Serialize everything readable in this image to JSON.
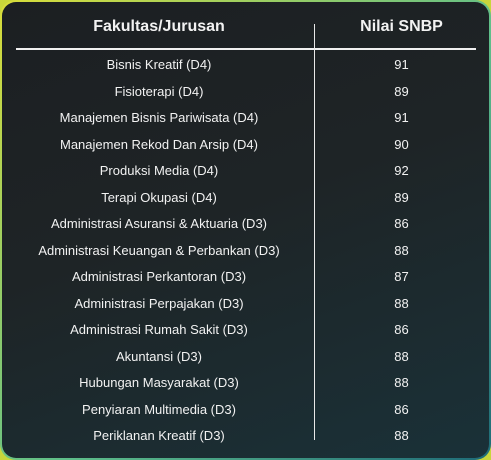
{
  "table": {
    "headers": {
      "program": "Fakultas/Jurusan",
      "score": "Nilai SNBP"
    },
    "rows": [
      {
        "program": "Bisnis Kreatif (D4)",
        "score": "91"
      },
      {
        "program": "Fisioterapi (D4)",
        "score": "89"
      },
      {
        "program": "Manajemen Bisnis Pariwisata (D4)",
        "score": "91"
      },
      {
        "program": "Manajemen Rekod Dan Arsip (D4)",
        "score": "90"
      },
      {
        "program": "Produksi Media (D4)",
        "score": "92"
      },
      {
        "program": "Terapi Okupasi (D4)",
        "score": "89"
      },
      {
        "program": "Administrasi Asuransi & Aktuaria (D3)",
        "score": "86"
      },
      {
        "program": "Administrasi Keuangan & Perbankan (D3)",
        "score": "88"
      },
      {
        "program": "Administrasi Perkantoran (D3)",
        "score": "87"
      },
      {
        "program": "Administrasi Perpajakan (D3)",
        "score": "88"
      },
      {
        "program": "Administrasi Rumah Sakit (D3)",
        "score": "86"
      },
      {
        "program": "Akuntansi (D3)",
        "score": "88"
      },
      {
        "program": "Hubungan Masyarakat (D3)",
        "score": "88"
      },
      {
        "program": "Penyiaran Multimedia (D3)",
        "score": "86"
      },
      {
        "program": "Periklanan Kreatif (D3)",
        "score": "88"
      }
    ]
  },
  "colors": {
    "border_gradient_start": "#d9dd3a",
    "border_gradient_end": "#1e6b78",
    "panel_bg": "#1c1f22",
    "text": "#f2f2f2"
  }
}
